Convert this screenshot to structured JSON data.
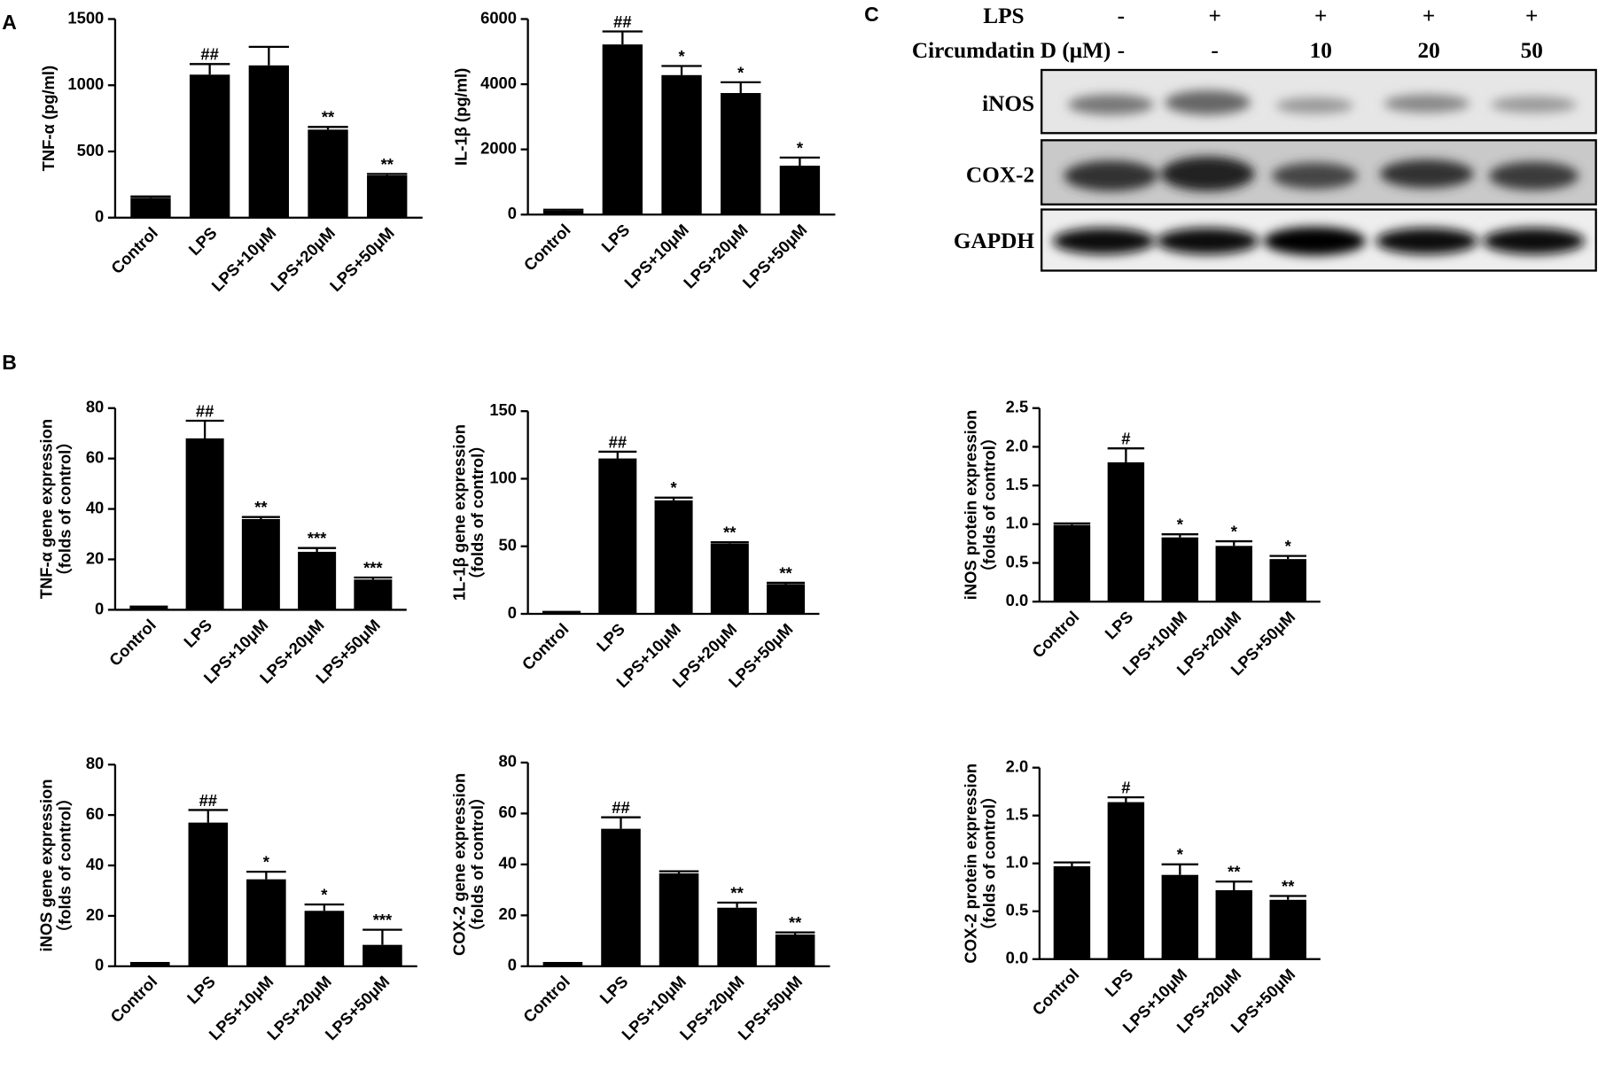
{
  "panel_labels": [
    "A",
    "B",
    "C"
  ],
  "blot": {
    "lps_label": "LPS",
    "lps": [
      "-",
      "+",
      "+",
      "+",
      "+"
    ],
    "treatment_label": "Circumdatin D (μM)",
    "treatment": [
      "-",
      "-",
      "10",
      "20",
      "50"
    ],
    "rows": [
      "iNOS",
      "COX-2",
      "GAPDH"
    ]
  },
  "chart_data": [
    {
      "type": "bar",
      "ylabel": "TNF-α (pg/ml)",
      "categories": [
        "Control",
        "LPS",
        "LPS+10μM",
        "LPS+20μM",
        "LPS+50μM"
      ],
      "values": [
        150,
        1080,
        1150,
        665,
        320
      ],
      "errors": [
        10,
        80,
        140,
        20,
        10
      ],
      "annotations": [
        null,
        "##",
        null,
        "**",
        "**"
      ],
      "color": "#000000",
      "ylim": [
        0,
        1500
      ],
      "yticks": [
        0,
        500,
        1000,
        1500
      ]
    },
    {
      "type": "bar",
      "ylabel": "IL-1β (pg/ml)",
      "categories": [
        "Control",
        "LPS",
        "LPS+10μM",
        "LPS+20μM",
        "LPS+50μM"
      ],
      "values": [
        120,
        5220,
        4280,
        3730,
        1500
      ],
      "errors": [
        30,
        400,
        280,
        330,
        250
      ],
      "annotations": [
        null,
        "##",
        "*",
        "*",
        "*"
      ],
      "color": "#000000",
      "ylim": [
        0,
        6000
      ],
      "yticks": [
        0,
        2000,
        4000,
        6000
      ]
    },
    {
      "type": "bar",
      "ylabel": "TNF-α gene expression",
      "ylabel2": "（folds of control）",
      "categories": [
        "Control",
        "LPS",
        "LPS+10μM",
        "LPS+20μM",
        "LPS+50μM"
      ],
      "values": [
        1,
        68,
        36,
        23,
        12
      ],
      "errors": [
        0.3,
        7,
        0.8,
        1.5,
        0.8
      ],
      "annotations": [
        null,
        "##",
        "**",
        "***",
        "***"
      ],
      "color": "#000000",
      "ylim": [
        0,
        80
      ],
      "yticks": [
        0,
        20,
        40,
        60,
        80
      ]
    },
    {
      "type": "bar",
      "ylabel": "1L-1β  gene expression",
      "ylabel2": "（folds of control）",
      "categories": [
        "Control",
        "LPS",
        "LPS+10μM",
        "LPS+20μM",
        "LPS+50μM"
      ],
      "values": [
        1,
        115,
        84,
        52,
        22
      ],
      "errors": [
        0.5,
        5,
        2,
        1,
        1
      ],
      "annotations": [
        null,
        "##",
        "*",
        "**",
        "**"
      ],
      "color": "#000000",
      "ylim": [
        0,
        150
      ],
      "yticks": [
        0,
        50,
        100,
        150
      ]
    },
    {
      "type": "bar",
      "ylabel": "iNOS protein expression",
      "ylabel2": "（folds of control）",
      "categories": [
        "Control",
        "LPS",
        "LPS+10μM",
        "LPS+20μM",
        "LPS+50μM"
      ],
      "values": [
        0.99,
        1.8,
        0.83,
        0.72,
        0.55
      ],
      "errors": [
        0.02,
        0.18,
        0.04,
        0.06,
        0.04
      ],
      "annotations": [
        null,
        "#",
        "*",
        "*",
        "*"
      ],
      "color": "#000000",
      "ylim": [
        0,
        2.5
      ],
      "yticks": [
        {
          "value": 0,
          "label": "0.0"
        },
        0.5,
        {
          "value": 1,
          "label": "1.0"
        },
        1.5,
        {
          "value": 2,
          "label": "2.0"
        },
        2.5
      ]
    },
    {
      "type": "bar",
      "ylabel": "iNOS gene expression",
      "ylabel2": "（folds of control）",
      "categories": [
        "Control",
        "LPS",
        "LPS+10μM",
        "LPS+20μM",
        "LPS+50μM"
      ],
      "values": [
        1,
        57,
        34.5,
        22,
        8.5
      ],
      "errors": [
        0.3,
        5,
        3,
        2.5,
        6
      ],
      "annotations": [
        null,
        "##",
        "*",
        "*",
        "***"
      ],
      "color": "#000000",
      "ylim": [
        0,
        80
      ],
      "yticks": [
        0,
        20,
        40,
        60,
        80
      ]
    },
    {
      "type": "bar",
      "ylabel": "COX-2 gene expression",
      "ylabel2": "（folds of control）",
      "categories": [
        "Control",
        "LPS",
        "LPS+10μM",
        "LPS+20μM",
        "LPS+50μM"
      ],
      "values": [
        1,
        54,
        36.5,
        23,
        12.5
      ],
      "errors": [
        0.3,
        4.5,
        0.8,
        2,
        0.8
      ],
      "annotations": [
        null,
        "##",
        null,
        "**",
        "**"
      ],
      "color": "#000000",
      "ylim": [
        0,
        80
      ],
      "yticks": [
        0,
        20,
        40,
        60,
        80
      ]
    },
    {
      "type": "bar",
      "ylabel": "COX-2 protein expression",
      "ylabel2": "（folds of control）",
      "categories": [
        "Control",
        "LPS",
        "LPS+10μM",
        "LPS+20μM",
        "LPS+50μM"
      ],
      "values": [
        0.97,
        1.64,
        0.88,
        0.72,
        0.62
      ],
      "errors": [
        0.04,
        0.05,
        0.11,
        0.09,
        0.04
      ],
      "annotations": [
        null,
        "#",
        "*",
        "**",
        "**"
      ],
      "color": "#000000",
      "ylim": [
        0,
        2
      ],
      "yticks": [
        {
          "value": 0,
          "label": "0.0"
        },
        0.5,
        {
          "value": 1,
          "label": "1.0"
        },
        1.5,
        {
          "value": 2,
          "label": "2.0"
        }
      ]
    }
  ]
}
